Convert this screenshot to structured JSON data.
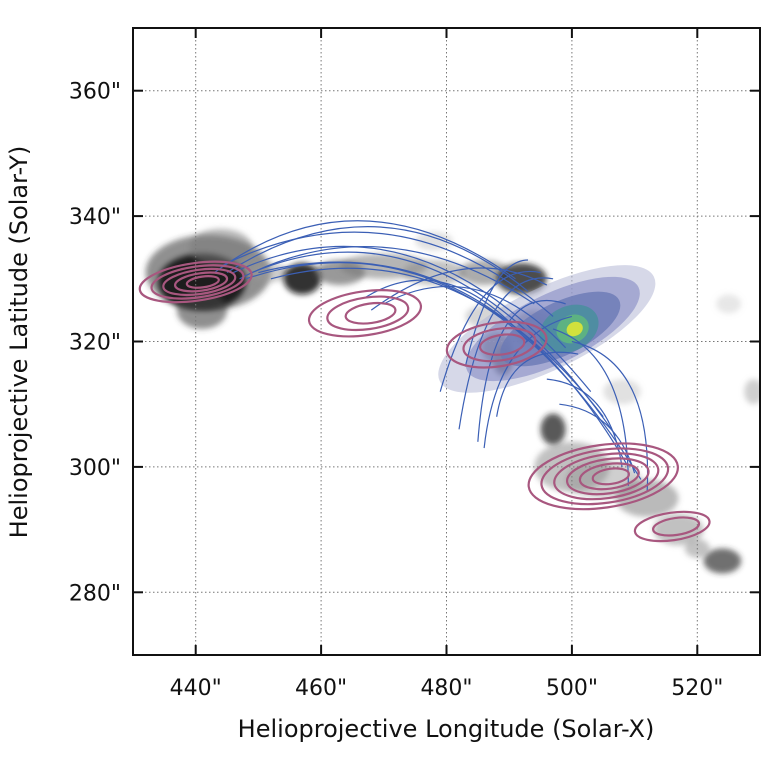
{
  "chart_data": {
    "type": "scatter",
    "title": "",
    "xlabel": "Helioprojective Longitude (Solar-X)",
    "ylabel": "Helioprojective Latitude (Solar-Y)",
    "xlim": [
      430,
      530
    ],
    "ylim": [
      270,
      370
    ],
    "x_ticks": [
      440,
      460,
      480,
      500,
      520
    ],
    "y_ticks": [
      280,
      300,
      320,
      340,
      360
    ],
    "x_tick_labels": [
      "440\"",
      "460\"",
      "480\"",
      "500\"",
      "520\""
    ],
    "y_tick_labels": [
      "280\"",
      "300\"",
      "320\"",
      "340\"",
      "360\""
    ],
    "grid": true,
    "background_image": "grayscale EUV intensity map of a flaring active-region loop arcade",
    "overlays": {
      "pink_contours": {
        "color": "#a8577f",
        "sources": [
          {
            "center": [
              440,
              329.5
            ],
            "rx": 9,
            "ry": 3,
            "levels": 5
          },
          {
            "center": [
              467,
              324.5
            ],
            "rx": 9,
            "ry": 3.5,
            "levels": 3
          },
          {
            "center": [
              488,
              319.5
            ],
            "rx": 8,
            "ry": 3.5,
            "levels": 3
          },
          {
            "center": [
              505,
              298.5
            ],
            "rx": 12,
            "ry": 5,
            "levels": 6
          },
          {
            "center": [
              516,
              290.5
            ],
            "rx": 6,
            "ry": 2.2,
            "levels": 2
          }
        ]
      },
      "filled_source": {
        "colormap": [
          "#b5b8d6",
          "#8a91c6",
          "#6a79b5",
          "#4a8e9e",
          "#5eb57f",
          "#d6e33a"
        ],
        "center": [
          496,
          322
        ],
        "major_axis": 38,
        "minor_axis": 13,
        "angle_deg": -26
      },
      "field_lines": {
        "color": "#3b5fb5",
        "count": 22
      }
    }
  }
}
